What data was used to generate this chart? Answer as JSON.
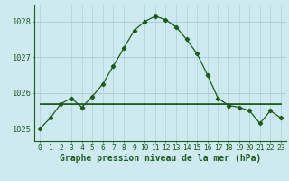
{
  "title": "Graphe pression niveau de la mer (hPa)",
  "x_labels": [
    "0",
    "1",
    "2",
    "3",
    "4",
    "5",
    "6",
    "7",
    "8",
    "9",
    "10",
    "11",
    "12",
    "13",
    "14",
    "15",
    "16",
    "17",
    "18",
    "19",
    "20",
    "21",
    "22",
    "23"
  ],
  "hours": [
    0,
    1,
    2,
    3,
    4,
    5,
    6,
    7,
    8,
    9,
    10,
    11,
    12,
    13,
    14,
    15,
    16,
    17,
    18,
    19,
    20,
    21,
    22,
    23
  ],
  "main_values": [
    1025.0,
    1025.3,
    1025.7,
    1025.85,
    1025.6,
    1025.9,
    1026.25,
    1026.75,
    1027.25,
    1027.75,
    1028.0,
    1028.15,
    1028.05,
    1027.85,
    1027.5,
    1027.1,
    1026.5,
    1025.85,
    1025.65,
    1025.6,
    1025.5,
    1025.15,
    1025.5,
    1025.3
  ],
  "flat_line1": [
    1025.7,
    1025.7,
    1025.7,
    1025.7,
    1025.7,
    1025.7,
    1025.7,
    1025.7,
    1025.7,
    1025.7,
    1025.7,
    1025.7,
    1025.7,
    1025.7,
    1025.7,
    1025.7,
    1025.7,
    1025.7,
    1025.7,
    1025.7,
    1025.7,
    1025.7,
    1025.7,
    1025.7
  ],
  "flat_line2": [
    1025.72,
    1025.72,
    1025.72,
    1025.72,
    1025.72,
    1025.72,
    1025.72,
    1025.72,
    1025.72,
    1025.72,
    1025.72,
    1025.72,
    1025.72,
    1025.72,
    1025.72,
    1025.72,
    1025.72,
    1025.72,
    1025.72,
    1025.72,
    1025.72,
    1025.72,
    1025.72,
    1025.72
  ],
  "flat_line3": [
    1025.68,
    1025.68,
    1025.68,
    1025.68,
    1025.68,
    1025.68,
    1025.68,
    1025.68,
    1025.68,
    1025.68,
    1025.68,
    1025.68,
    1025.68,
    1025.68,
    1025.68,
    1025.68,
    1025.68,
    1025.68,
    1025.68,
    1025.68,
    1025.68,
    1025.68,
    1025.68,
    1025.68
  ],
  "ylim_min": 1024.65,
  "ylim_max": 1028.45,
  "yticks": [
    1025,
    1026,
    1027,
    1028
  ],
  "bg_color": "#ceeaf0",
  "grid_color": "#aacfda",
  "line_color": "#1a5c1a",
  "title_color": "#1a5c1a",
  "title_fontsize": 7.0,
  "tick_fontsize": 6.2
}
